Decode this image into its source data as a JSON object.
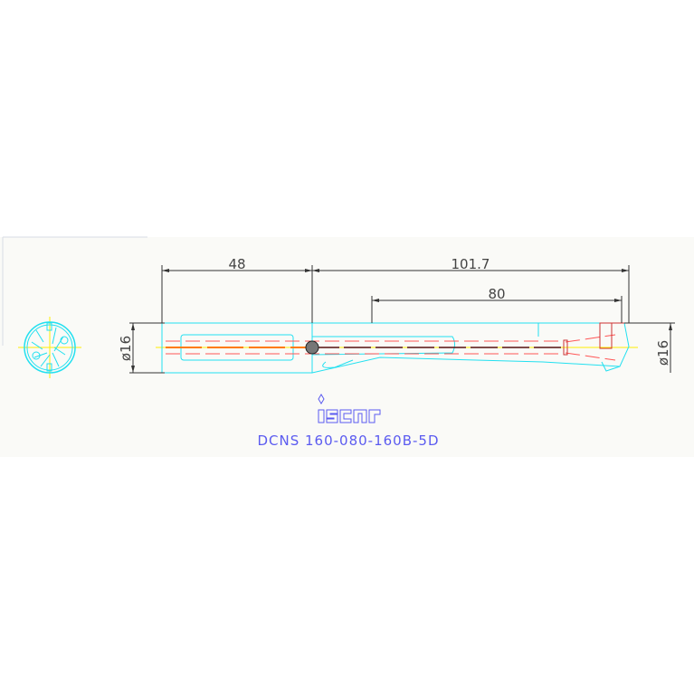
{
  "drawing": {
    "dimensions": {
      "shank_length": "48",
      "overall_length": "101.7",
      "flute_length": "80",
      "shank_diameter": "ø16",
      "drill_diameter": "ø16"
    },
    "logo_text": "iscar",
    "part_number": "DCNS 160-080-160B-5D"
  },
  "colors": {
    "outline": "#22e0f0",
    "hidden_lines": "#ff4444",
    "centerline": "#ffee00",
    "dimension": "#333333",
    "title": "#5b5bf0"
  }
}
